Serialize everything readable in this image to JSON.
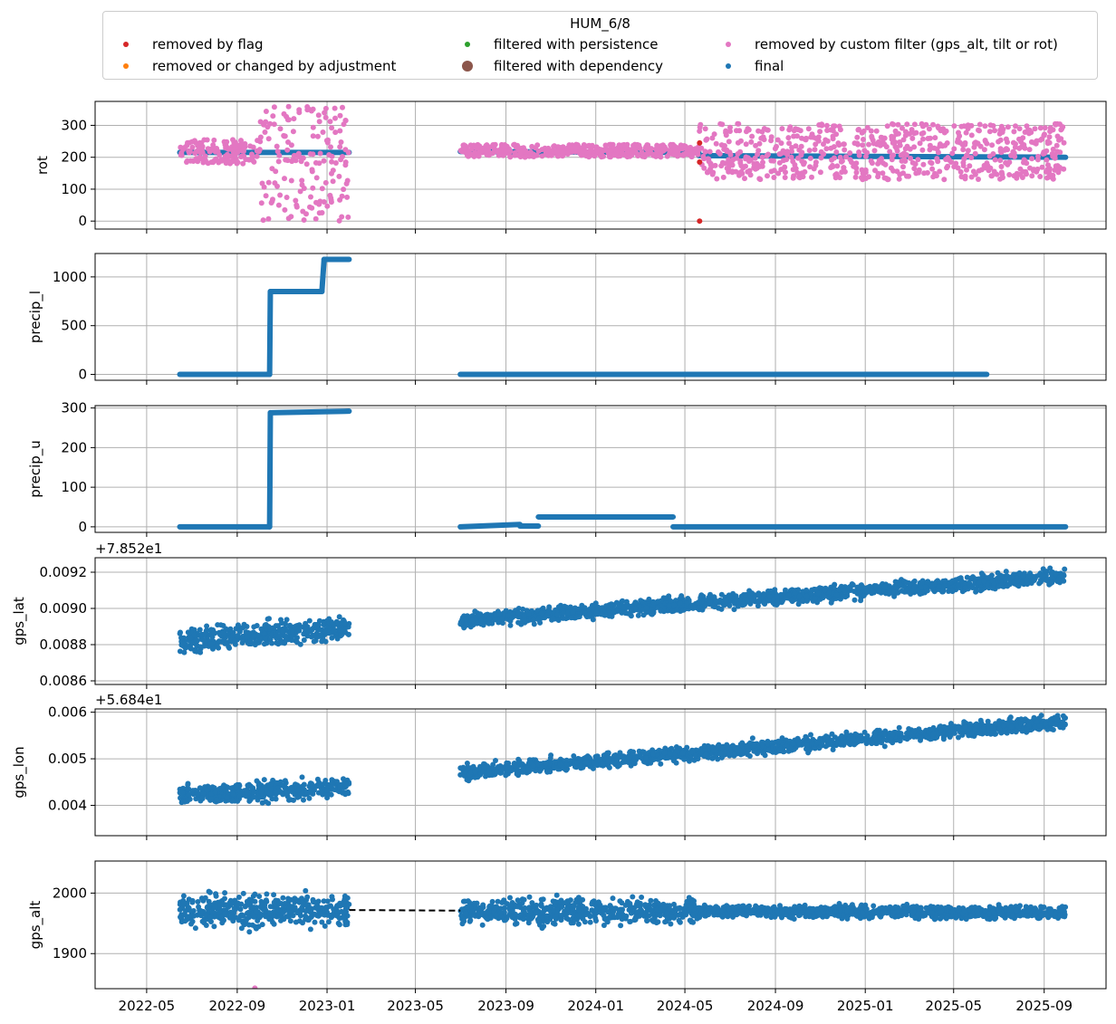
{
  "chart_data": {
    "type": "scatter",
    "legend": {
      "title": "HUM_6/8",
      "placement": "top",
      "entries": [
        {
          "label": "removed by flag",
          "color": "#d62728"
        },
        {
          "label": "removed or changed by adjustment",
          "color": "#ff7f0e"
        },
        {
          "label": "filtered with persistence",
          "color": "#2ca02c"
        },
        {
          "label": "filtered with dependency",
          "color": "#8c564b"
        },
        {
          "label": "removed by custom filter (gps_alt, tilt or rot)",
          "color": "#e377c2"
        },
        {
          "label": "final",
          "color": "#1f77b4"
        }
      ]
    },
    "x_ticks": [
      "2022-05",
      "2022-09",
      "2023-01",
      "2023-05",
      "2023-09",
      "2024-01",
      "2024-05",
      "2024-09",
      "2025-01",
      "2025-05",
      "2025-09"
    ],
    "grid": true,
    "panels": [
      {
        "ylabel": "rot",
        "ylim": [
          -25,
          375
        ],
        "yticks": [
          "0",
          "100",
          "200",
          "300"
        ],
        "series": [
          {
            "type": "final",
            "color": "#1f77b4",
            "segments": [
              {
                "x": [
                  "2022-06-15",
                  "2023-01-31"
                ],
                "y": [
                  215,
                  215
                ]
              },
              {
                "x": [
                  "2023-07-01",
                  "2024-05-20"
                ],
                "y": [
                  218,
                  215
                ]
              },
              {
                "x": [
                  "2024-05-20",
                  "2025-09-30"
                ],
                "y": [
                  205,
                  200
                ]
              }
            ]
          },
          {
            "type": "removed by custom filter (gps_alt, tilt or rot)",
            "color": "#e377c2",
            "regions": [
              {
                "x": [
                  "2022-06-15",
                  "2022-10-01"
                ],
                "y": [
                  180,
                  255
                ]
              },
              {
                "x": [
                  "2022-10-01",
                  "2023-01-31"
                ],
                "y": [
                  0,
                  360
                ]
              },
              {
                "x": [
                  "2023-07-01",
                  "2024-05-20"
                ],
                "y": [
                  200,
                  240
                ]
              },
              {
                "x": [
                  "2024-05-20",
                  "2025-09-30"
                ],
                "y": [
                  130,
                  305
                ]
              }
            ]
          },
          {
            "type": "removed by flag",
            "color": "#d62728",
            "points": [
              {
                "x": "2024-05-21",
                "y": 245
              },
              {
                "x": "2024-05-21",
                "y": 185
              },
              {
                "x": "2024-05-21",
                "y": 0
              }
            ]
          }
        ]
      },
      {
        "ylabel": "precip_l",
        "ylim": [
          -60,
          1240
        ],
        "yticks": [
          "0",
          "500",
          "1000"
        ],
        "series": [
          {
            "type": "final",
            "color": "#1f77b4",
            "segments": [
              {
                "x": [
                  "2022-06-15",
                  "2022-10-15"
                ],
                "y": [
                  0,
                  0
                ]
              },
              {
                "x": [
                  "2022-10-15",
                  "2022-10-16"
                ],
                "y": [
                  0,
                  850
                ]
              },
              {
                "x": [
                  "2022-10-16",
                  "2022-12-25"
                ],
                "y": [
                  850,
                  850
                ]
              },
              {
                "x": [
                  "2022-12-25",
                  "2022-12-28"
                ],
                "y": [
                  850,
                  1180
                ]
              },
              {
                "x": [
                  "2022-12-28",
                  "2023-01-31"
                ],
                "y": [
                  1180,
                  1180
                ]
              },
              {
                "x": [
                  "2023-07-01",
                  "2025-06-15"
                ],
                "y": [
                  0,
                  0
                ]
              }
            ]
          }
        ]
      },
      {
        "ylabel": "precip_u",
        "ylim": [
          -14,
          306
        ],
        "yticks": [
          "0",
          "100",
          "200",
          "300"
        ],
        "series": [
          {
            "type": "final",
            "color": "#1f77b4",
            "segments": [
              {
                "x": [
                  "2022-06-15",
                  "2022-10-15"
                ],
                "y": [
                  0,
                  0
                ]
              },
              {
                "x": [
                  "2022-10-15",
                  "2022-10-16"
                ],
                "y": [
                  0,
                  288
                ]
              },
              {
                "x": [
                  "2022-10-16",
                  "2023-01-31"
                ],
                "y": [
                  288,
                  292
                ]
              },
              {
                "x": [
                  "2023-07-01",
                  "2023-09-20"
                ],
                "y": [
                  0,
                  6
                ]
              },
              {
                "x": [
                  "2023-09-20",
                  "2023-10-15"
                ],
                "y": [
                  2,
                  2
                ]
              },
              {
                "x": [
                  "2023-10-15",
                  "2024-04-15"
                ],
                "y": [
                  25,
                  25
                ]
              },
              {
                "x": [
                  "2024-04-15",
                  "2025-09-30"
                ],
                "y": [
                  0,
                  0
                ]
              }
            ]
          }
        ]
      },
      {
        "ylabel": "gps_lat",
        "offset_label": "+7.852e1",
        "ylim": [
          0.00858,
          0.00928
        ],
        "yticks": [
          "0.0086",
          "0.0088",
          "0.0090",
          "0.0092"
        ],
        "series": [
          {
            "type": "final",
            "color": "#1f77b4",
            "bands": [
              {
                "x": [
                  "2022-06-15",
                  "2023-01-31"
                ],
                "y_start": 0.00882,
                "y_end": 0.00889,
                "spread": 0.0001
              },
              {
                "x": [
                  "2023-07-01",
                  "2025-09-30"
                ],
                "y_start": 0.00893,
                "y_end": 0.00918,
                "spread": 6e-05
              }
            ]
          }
        ]
      },
      {
        "ylabel": "gps_lon",
        "offset_label": "+5.684e1",
        "ylim": [
          0.00335,
          0.00607
        ],
        "yticks": [
          "0.004",
          "0.005",
          "0.006"
        ],
        "series": [
          {
            "type": "final",
            "color": "#1f77b4",
            "bands": [
              {
                "x": [
                  "2022-06-15",
                  "2023-01-31"
                ],
                "y_start": 0.0042,
                "y_end": 0.0044,
                "spread": 0.0003
              },
              {
                "x": [
                  "2023-07-01",
                  "2025-09-30"
                ],
                "y_start": 0.0047,
                "y_end": 0.0058,
                "spread": 0.00022
              }
            ]
          }
        ]
      },
      {
        "ylabel": "gps_alt",
        "ylim": [
          1842,
          2053
        ],
        "yticks": [
          "1900",
          "2000"
        ],
        "series": [
          {
            "type": "final",
            "color": "#1f77b4",
            "bands": [
              {
                "x": [
                  "2022-06-15",
                  "2023-01-31"
                ],
                "y_start": 1970,
                "y_end": 1970,
                "spread": 38
              },
              {
                "x": [
                  "2023-07-01",
                  "2024-05-20"
                ],
                "y_start": 1970,
                "y_end": 1970,
                "spread": 30
              },
              {
                "x": [
                  "2024-05-20",
                  "2025-09-30"
                ],
                "y_start": 1970,
                "y_end": 1968,
                "spread": 15
              }
            ]
          },
          {
            "type": "removed by custom filter (gps_alt, tilt or rot)",
            "color": "#e377c2",
            "points": [
              {
                "x": "2022-09-25",
                "y": 1843
              }
            ]
          },
          {
            "type": "gap",
            "color": "#000000",
            "style": "dashed",
            "segments": [
              {
                "x": [
                  "2023-01-31",
                  "2023-07-01"
                ],
                "y": [
                  1972,
                  1971
                ]
              }
            ]
          }
        ]
      }
    ]
  }
}
